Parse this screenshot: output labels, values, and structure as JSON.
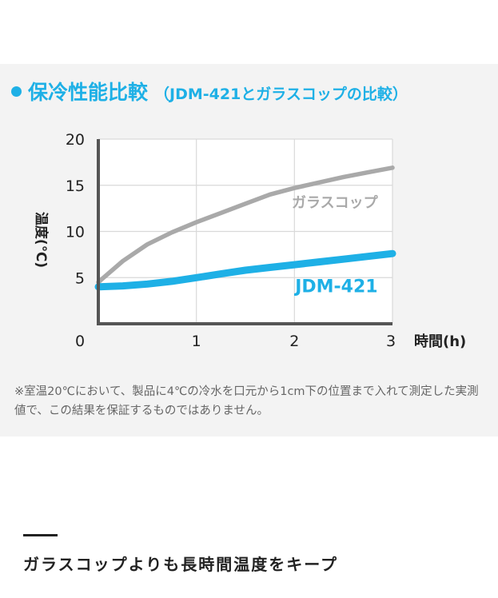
{
  "heading": {
    "title": "保冷性能比較",
    "subtitle": "（JDM-421とガラスコップの比較）"
  },
  "colors": {
    "accent": "#1eb0e6",
    "glass": "#a9a9a9",
    "axis": "#555555"
  },
  "chart_data": {
    "type": "line",
    "title": "保冷性能比較",
    "xlabel": "時間(h)",
    "ylabel": "温度(℃)",
    "xlim": [
      0,
      3
    ],
    "ylim": [
      0,
      20
    ],
    "xticks": [
      0,
      1,
      2,
      3
    ],
    "yticks": [
      5,
      10,
      15,
      20
    ],
    "xtick_labels": [
      "0",
      "1",
      "2",
      "3"
    ],
    "ytick_labels": [
      "5",
      "10",
      "15",
      "20"
    ],
    "grid": true,
    "series": [
      {
        "name": "ガラスコップ",
        "color": "#a9a9a9",
        "x": [
          0,
          0.25,
          0.5,
          0.75,
          1.0,
          1.25,
          1.5,
          1.75,
          2.0,
          2.25,
          2.5,
          2.75,
          3.0
        ],
        "y": [
          4.5,
          6.8,
          8.6,
          9.9,
          11.0,
          12.0,
          13.0,
          14.0,
          14.7,
          15.3,
          15.9,
          16.4,
          16.9
        ]
      },
      {
        "name": "JDM-421",
        "color": "#1eb0e6",
        "x": [
          0,
          0.25,
          0.5,
          0.75,
          1.0,
          1.25,
          1.5,
          1.75,
          2.0,
          2.25,
          2.5,
          2.75,
          3.0
        ],
        "y": [
          4.0,
          4.1,
          4.3,
          4.6,
          5.0,
          5.4,
          5.8,
          6.1,
          6.4,
          6.7,
          7.0,
          7.3,
          7.6
        ]
      }
    ]
  },
  "note": "※室温20℃において、製品に4℃の冷水を口元から1cm下の位置まで入れて測定した実測値で、この結果を保証するものではありません。",
  "tagline": "ガラスコップよりも長時間温度をキープ"
}
